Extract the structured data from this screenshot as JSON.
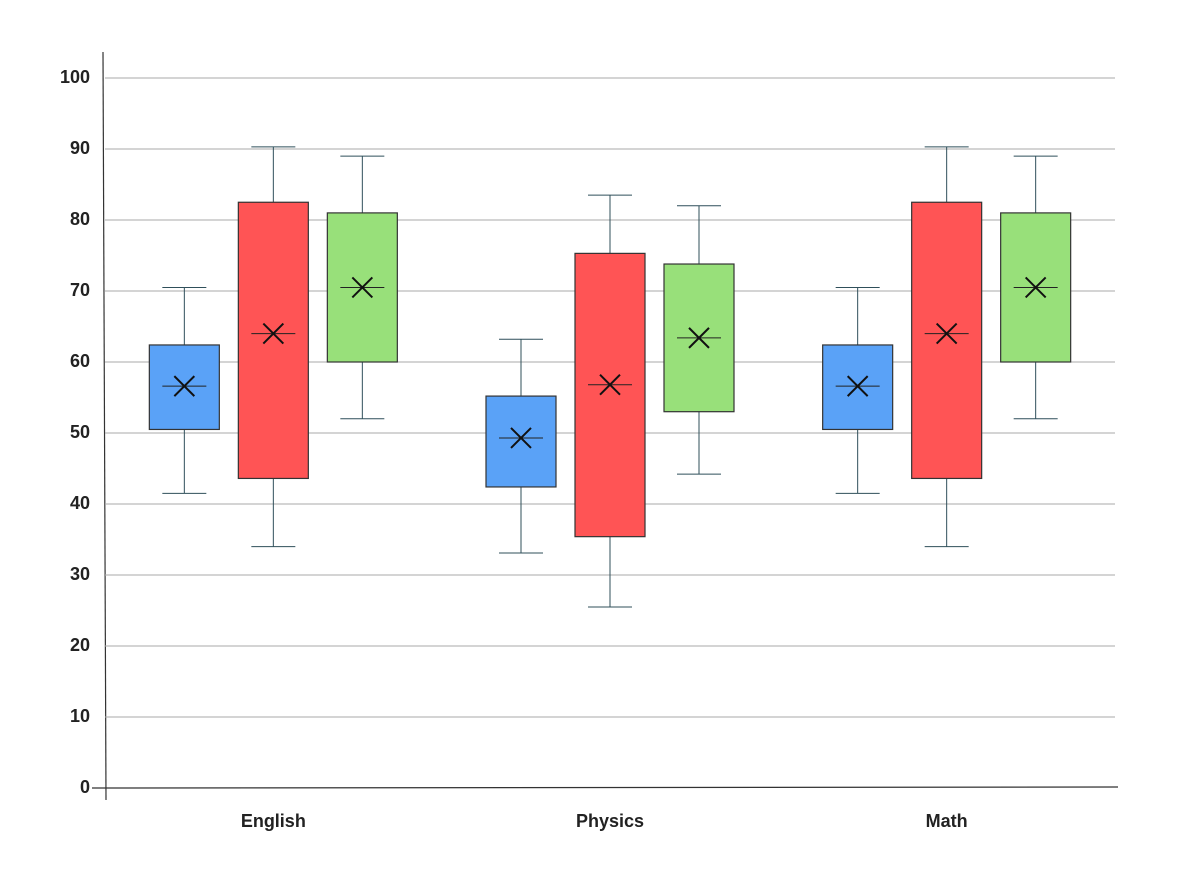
{
  "chart_data": {
    "type": "box",
    "categories": [
      "English",
      "Physics",
      "Math"
    ],
    "series": [
      {
        "color": "#5aa2f7",
        "min": [
          41.5,
          33.1,
          41.5
        ],
        "q1": [
          50.5,
          42.4,
          50.5
        ],
        "median": [
          56.6,
          49.3,
          56.6
        ],
        "mean": [
          56.6,
          49.3,
          56.6
        ],
        "q3": [
          62.4,
          55.2,
          62.4
        ],
        "max": [
          70.5,
          63.2,
          70.5
        ]
      },
      {
        "color": "#ff5455",
        "min": [
          34,
          25.5,
          34
        ],
        "q1": [
          43.6,
          35.4,
          43.6
        ],
        "median": [
          64,
          56.8,
          64
        ],
        "mean": [
          64,
          56.8,
          64
        ],
        "q3": [
          82.5,
          75.3,
          82.5
        ],
        "max": [
          90.3,
          83.5,
          90.3
        ]
      },
      {
        "color": "#98e07a",
        "min": [
          52,
          44.2,
          52
        ],
        "q1": [
          60,
          53,
          60
        ],
        "median": [
          70.5,
          63.4,
          70.5
        ],
        "mean": [
          70.5,
          63.4,
          70.5
        ],
        "q3": [
          81,
          73.8,
          81
        ],
        "max": [
          89,
          82,
          89
        ]
      }
    ],
    "ylim": [
      0,
      100
    ],
    "yticks": [
      0,
      10,
      20,
      30,
      40,
      50,
      60,
      70,
      80,
      90,
      100
    ],
    "grid": true
  }
}
